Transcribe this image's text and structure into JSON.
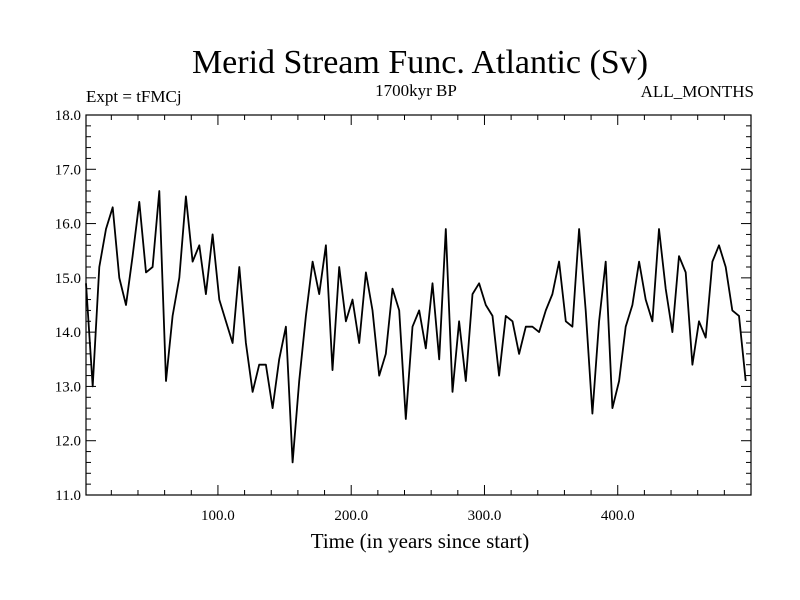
{
  "chart_data": {
    "type": "line",
    "title": "Merid Stream Func. Atlantic (Sv)",
    "subtitle_left": "Expt = tFMCj",
    "subtitle_center": "1700kyr BP",
    "subtitle_right": "ALL_MONTHS",
    "xlabel": "Time (in years since start)",
    "ylabel": "",
    "xlim": [
      1,
      500
    ],
    "ylim": [
      11.0,
      18.0
    ],
    "x_ticks": [
      100,
      200,
      300,
      400
    ],
    "x_tick_labels": [
      "100.0",
      "200.0",
      "300.0",
      "400.0"
    ],
    "y_ticks": [
      11,
      12,
      13,
      14,
      15,
      16,
      17,
      18
    ],
    "y_tick_labels": [
      "11.0",
      "12.0",
      "13.0",
      "14.0",
      "15.0",
      "16.0",
      "17.0",
      "18.0"
    ],
    "grid": false,
    "series": [
      {
        "name": "Merid Stream Func. Atlantic",
        "x_start": 1,
        "x_step": 5,
        "values": [
          14.9,
          13.0,
          15.2,
          15.9,
          16.3,
          15.0,
          14.5,
          15.4,
          16.4,
          15.1,
          15.2,
          16.6,
          13.1,
          14.3,
          15.0,
          16.5,
          15.3,
          15.6,
          14.7,
          15.8,
          14.6,
          14.2,
          13.8,
          15.2,
          13.8,
          12.9,
          13.4,
          13.4,
          12.6,
          13.5,
          14.1,
          11.6,
          13.1,
          14.3,
          15.3,
          14.7,
          15.6,
          13.3,
          15.2,
          14.2,
          14.6,
          13.8,
          15.1,
          14.4,
          13.2,
          13.6,
          14.8,
          14.4,
          12.4,
          14.1,
          14.4,
          13.7,
          14.9,
          13.5,
          15.9,
          12.9,
          14.2,
          13.1,
          14.7,
          14.9,
          14.5,
          14.3,
          13.2,
          14.3,
          14.2,
          13.6,
          14.1,
          14.1,
          14.0,
          14.4,
          14.7,
          15.3,
          14.2,
          14.1,
          15.9,
          14.4,
          12.5,
          14.2,
          15.3,
          12.6,
          13.1,
          14.1,
          14.5,
          15.3,
          14.6,
          14.2,
          15.9,
          14.8,
          14.0,
          15.4,
          15.1,
          13.4,
          14.2,
          13.9,
          15.3,
          15.6,
          15.2,
          14.4,
          14.3,
          13.1
        ]
      }
    ]
  }
}
